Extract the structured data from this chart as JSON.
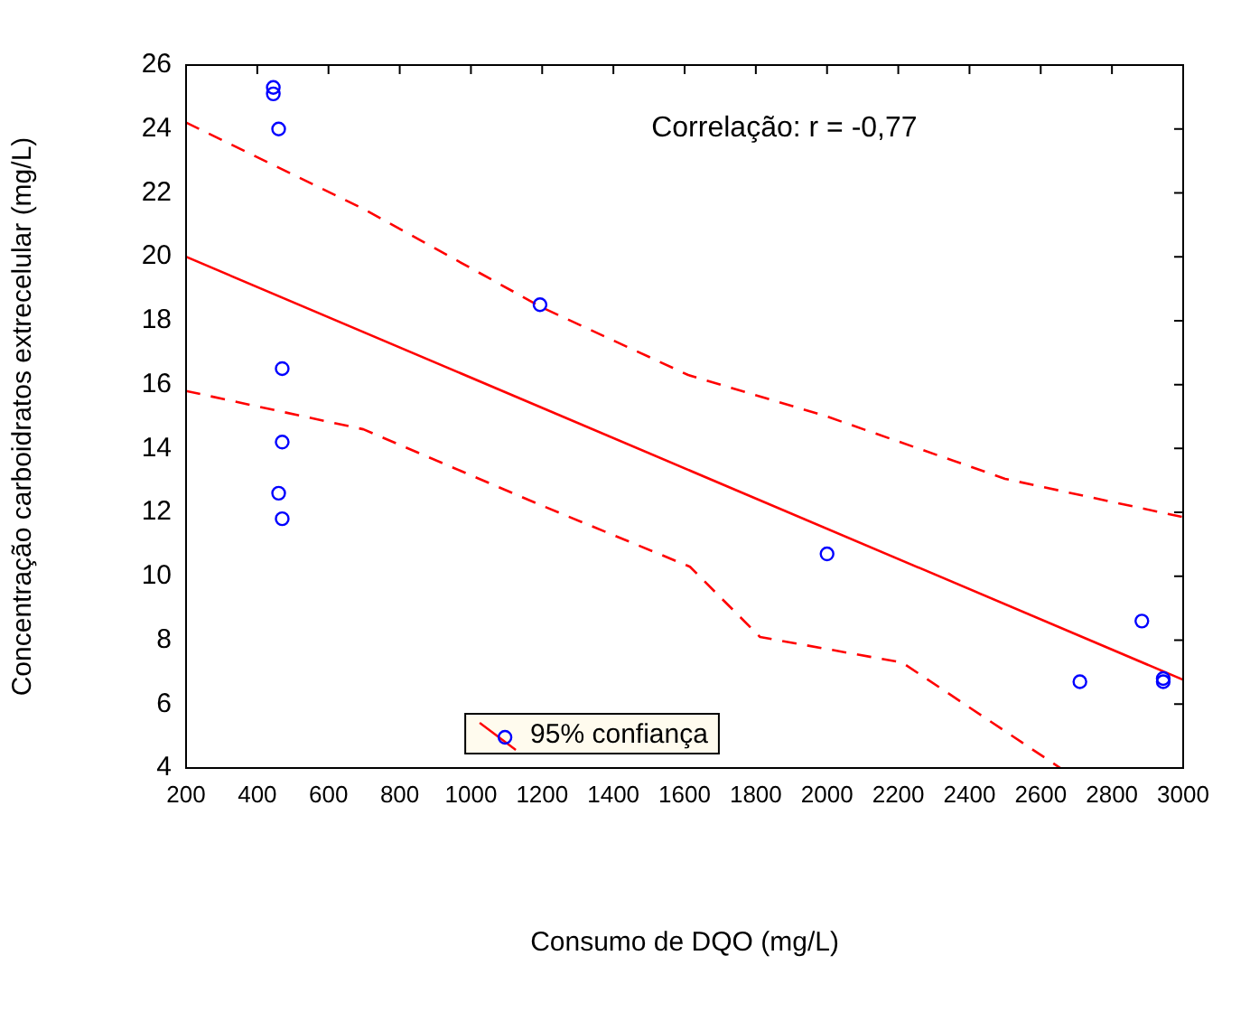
{
  "chart_data": {
    "type": "scatter",
    "xlabel": "Consumo de DQO (mg/L)",
    "ylabel": "Concentração carboidratos extrecelular (mg/L)",
    "annotations": [
      "Correlação: r = -0,77"
    ],
    "xlim": [
      200,
      3000
    ],
    "ylim": [
      4,
      26
    ],
    "xticks": [
      200,
      400,
      600,
      800,
      1000,
      1200,
      1400,
      1600,
      1800,
      2000,
      2200,
      2400,
      2600,
      2800,
      3000
    ],
    "yticks": [
      4,
      6,
      8,
      10,
      12,
      14,
      16,
      18,
      20,
      22,
      24,
      26
    ],
    "grid": false,
    "legend": "bottom",
    "series": [
      {
        "color": "#0000ff",
        "marker": "circle",
        "x": [
          445,
          445,
          460,
          470,
          470,
          460,
          470,
          1194,
          2000,
          2710,
          2884,
          2944,
          2944
        ],
        "values": [
          25.3,
          25.1,
          24.0,
          16.5,
          14.2,
          12.6,
          11.8,
          18.5,
          10.7,
          6.7,
          8.6,
          6.8,
          6.7
        ]
      },
      {
        "type": "line",
        "name": "95% confiança",
        "color": "#ff0000",
        "line_style": "solid",
        "marker": "none",
        "x": [
          200,
          3000
        ],
        "values": [
          20.0,
          6.76
        ]
      },
      {
        "type": "line",
        "color": "#ff0000",
        "line_style": "dashed",
        "marker": "none",
        "x": [
          200,
          698,
          1202,
          1610,
          2000,
          2500,
          3000
        ],
        "values": [
          24.2,
          21.5,
          18.4,
          16.3,
          15.0,
          13.05,
          11.85
        ]
      },
      {
        "type": "line",
        "color": "#ff0000",
        "line_style": "dashed",
        "marker": "none",
        "x": [
          200,
          698,
          1202,
          1615,
          1812,
          2211,
          2655
        ],
        "values": [
          15.8,
          14.6,
          12.2,
          10.3,
          8.1,
          7.3,
          4.0
        ]
      }
    ]
  }
}
